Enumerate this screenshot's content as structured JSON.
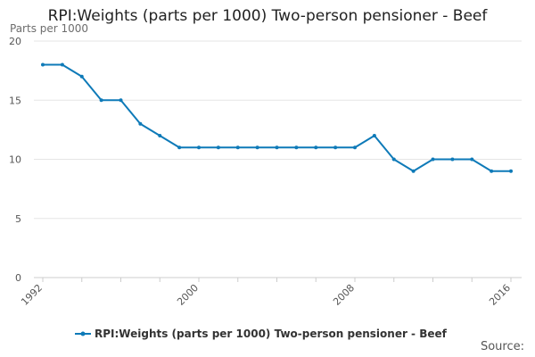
{
  "chart_data": {
    "type": "line",
    "title": "RPI:Weights (parts per 1000) Two-person pensioner - Beef",
    "ylabel": "Parts per 1000",
    "xlabel": "",
    "ylim": [
      0,
      20
    ],
    "xlim": [
      1992,
      2016
    ],
    "yticks": [
      0,
      5,
      10,
      15,
      20
    ],
    "xticks": [
      1992,
      2000,
      2008,
      2016
    ],
    "grid": true,
    "legend_position": "bottom",
    "colors": {
      "series": "#0e7ab8",
      "grid": "#e5e5e5",
      "axis": "#cccccc"
    },
    "series": [
      {
        "name": "RPI:Weights (parts per 1000) Two-person pensioner - Beef",
        "x": [
          1992,
          1993,
          1994,
          1995,
          1996,
          1997,
          1998,
          1999,
          2000,
          2001,
          2002,
          2003,
          2004,
          2005,
          2006,
          2007,
          2008,
          2009,
          2010,
          2011,
          2012,
          2013,
          2014,
          2015,
          2016
        ],
        "values": [
          18,
          18,
          17,
          15,
          15,
          13,
          12,
          11,
          11,
          11,
          11,
          11,
          11,
          11,
          11,
          11,
          11,
          12,
          10,
          9,
          10,
          10,
          10,
          9,
          9
        ]
      }
    ]
  },
  "source_label": "Source:"
}
